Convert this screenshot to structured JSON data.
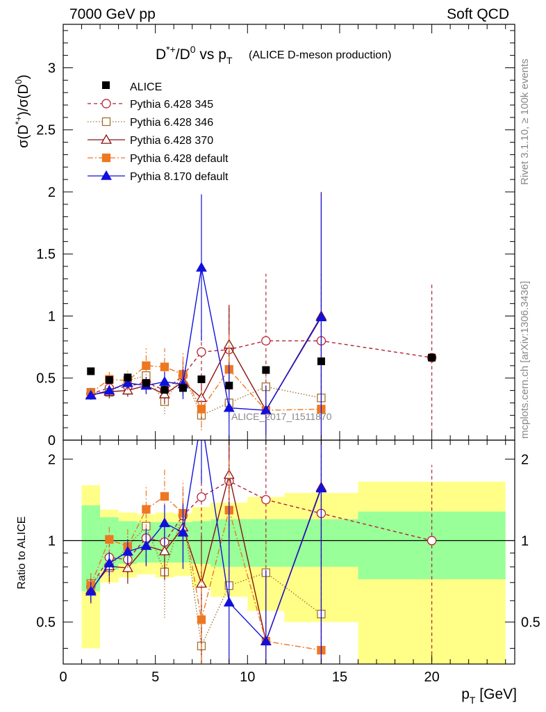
{
  "header": {
    "left": "7000 GeV pp",
    "right": "Soft QCD"
  },
  "side_labels": {
    "rivet": "Rivet 3.1.10, ≥ 100k events",
    "mcplots": "mcplots.cern.ch [arXiv:1306.3436]"
  },
  "chart_data": {
    "type": "scatter",
    "title_main": "D*+/D0 vs pT",
    "title_note": "(ALICE D-meson production)",
    "ylabel": "σ(D*+)/σ(D0)",
    "xlabel": "pT [GeV]",
    "ratio_ylabel": "Ratio to ALICE",
    "analysis_label": "ALICE_2017_I1511870",
    "xlim": [
      0,
      24.5
    ],
    "ylim": [
      0,
      3.35
    ],
    "ratio_ylim": [
      0.35,
      2.35
    ],
    "x_ticks": [
      "0",
      "5",
      "10",
      "15",
      "20"
    ],
    "y_ticks": [
      "0",
      "0.5",
      "1",
      "1.5",
      "2",
      "2.5",
      "3"
    ],
    "ratio_ticks": [
      "0.5",
      "1",
      "2"
    ],
    "bins": [
      [
        1,
        2
      ],
      [
        2,
        3
      ],
      [
        3,
        4
      ],
      [
        4,
        5
      ],
      [
        5,
        6
      ],
      [
        6,
        7
      ],
      [
        7,
        8
      ],
      [
        8,
        10
      ],
      [
        10,
        12
      ],
      [
        12,
        16
      ],
      [
        16,
        24
      ]
    ],
    "data": {
      "name": "ALICE",
      "x": [
        1.5,
        2.5,
        3.5,
        4.5,
        5.5,
        6.5,
        7.5,
        9,
        11,
        14,
        20
      ],
      "y": [
        0.555,
        0.485,
        0.505,
        0.46,
        0.405,
        0.42,
        0.49,
        0.44,
        0.565,
        0.635,
        0.665
      ],
      "ratio_band_stat": [
        0.35,
        0.22,
        0.18,
        0.17,
        0.17,
        0.17,
        0.18,
        0.2,
        0.2,
        0.2,
        0.28
      ],
      "ratio_band_total": [
        0.6,
        0.3,
        0.27,
        0.25,
        0.27,
        0.26,
        0.33,
        0.38,
        0.45,
        0.5,
        0.65
      ]
    },
    "series": [
      {
        "name": "Pythia 6.428 345",
        "color": "#b22234",
        "marker": "open-circle",
        "dash": "5,4",
        "x": [
          1.5,
          2.5,
          3.5,
          4.5,
          5.5,
          6.5,
          7.5,
          9,
          11,
          14,
          20
        ],
        "y": [
          0.375,
          0.42,
          0.43,
          0.47,
          0.4,
          0.52,
          0.71,
          0.73,
          0.8,
          0.8,
          0.665
        ],
        "err": [
          0.04,
          0.05,
          0.05,
          0.07,
          0.08,
          0.12,
          0.2,
          0.35,
          0.54,
          0.54,
          0.6
        ]
      },
      {
        "name": "Pythia 6.428 346",
        "color": "#a0722d",
        "marker": "open-square",
        "dash": "1.5,2.5",
        "x": [
          1.5,
          2.5,
          3.5,
          4.5,
          5.5,
          6.5,
          7.5,
          9,
          11,
          14
        ],
        "y": [
          0.385,
          0.385,
          0.48,
          0.52,
          0.31,
          0.53,
          0.2,
          0.3,
          0.43,
          0.34
        ],
        "err": [
          0.04,
          0.05,
          0.06,
          0.07,
          0.1,
          0.12,
          0.12,
          0.15,
          0.2,
          0.2
        ]
      },
      {
        "name": "Pythia 6.428 370",
        "color": "#8b1010",
        "marker": "open-triangle",
        "dash": "",
        "x": [
          1.5,
          2.5,
          3.5,
          4.5,
          5.5,
          6.5,
          7.5,
          9,
          11,
          14
        ],
        "y": [
          0.365,
          0.39,
          0.4,
          0.44,
          0.37,
          0.47,
          0.34,
          0.77,
          0.24,
          1.0
        ],
        "err": [
          0.04,
          0.05,
          0.05,
          0.06,
          0.08,
          0.12,
          0.17,
          0.32,
          0.2,
          1.0
        ]
      },
      {
        "name": "Pythia 6.428 default",
        "color": "#ee7722",
        "marker": "filled-square",
        "dash": "8,3,2,3",
        "x": [
          1.5,
          2.5,
          3.5,
          4.5,
          5.5,
          6.5,
          7.5,
          9,
          11,
          14
        ],
        "y": [
          0.38,
          0.49,
          0.48,
          0.6,
          0.59,
          0.53,
          0.25,
          0.57,
          0.24,
          0.25
        ],
        "err": [
          0.04,
          0.06,
          0.08,
          0.14,
          0.15,
          0.17,
          0.15,
          0.3,
          0.2,
          0.2
        ]
      },
      {
        "name": "Pythia 8.170 default",
        "color": "#1010dd",
        "marker": "filled-triangle",
        "dash": "",
        "x": [
          1.5,
          2.5,
          3.5,
          4.5,
          5.5,
          6.5,
          7.5,
          9,
          11,
          14
        ],
        "y": [
          0.36,
          0.4,
          0.46,
          0.44,
          0.47,
          0.45,
          1.39,
          0.26,
          0.24,
          0.99
        ],
        "err": [
          0.03,
          0.04,
          0.05,
          0.07,
          0.08,
          0.12,
          0.59,
          0.35,
          0.2,
          1.0
        ]
      }
    ]
  }
}
